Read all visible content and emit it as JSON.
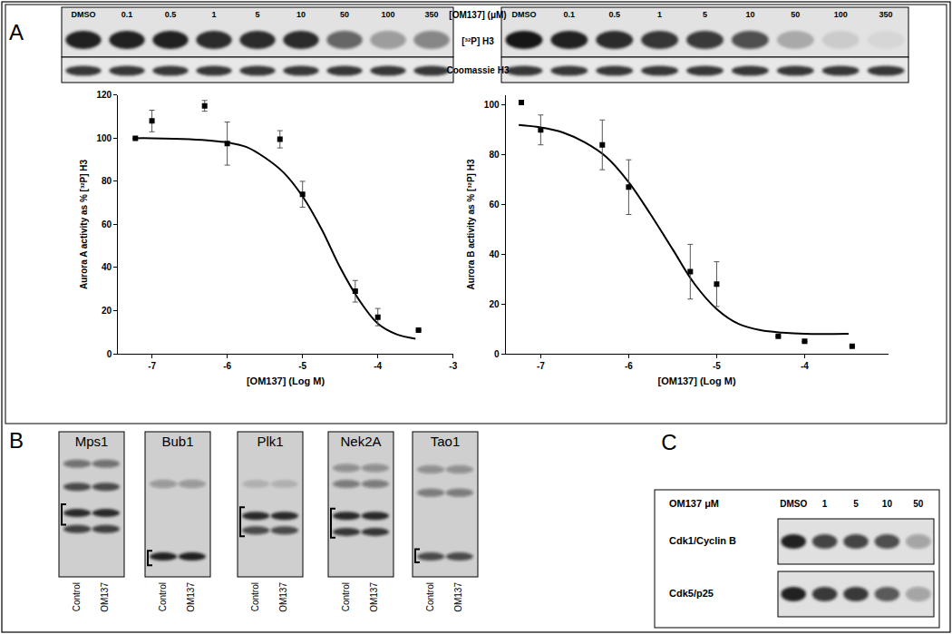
{
  "panel_labels": [
    "A",
    "B",
    "C"
  ],
  "chart_data": [
    {
      "type": "scatter",
      "y_label": "Aurora A activity as % [³²P] H3",
      "x_label": "[OM137] (Log M)",
      "x": [
        -7.22,
        -7,
        -6.3,
        -6,
        -5.3,
        -5,
        -4.3,
        -4,
        -3.46
      ],
      "values": [
        100,
        108,
        115,
        97.5,
        99.5,
        74,
        29,
        17,
        11
      ],
      "errors": [
        0,
        5,
        2.5,
        10,
        4,
        6,
        5,
        4,
        0
      ],
      "fit": {
        "x": [
          -7.25,
          -7,
          -6.5,
          -6,
          -5.75,
          -5.5,
          -5.25,
          -5,
          -4.75,
          -4.5,
          -4.25,
          -4,
          -3.75,
          -3.5
        ],
        "values": [
          100,
          100,
          99.5,
          98,
          96,
          91,
          84,
          73,
          58,
          40,
          25,
          14,
          9,
          7
        ]
      },
      "xlim": [
        -7.45,
        -3
      ],
      "xticks": [
        -7,
        -6,
        -5,
        -4,
        -3
      ],
      "ylim": [
        0,
        120
      ],
      "yticks": [
        0,
        20,
        40,
        60,
        80,
        100,
        120
      ],
      "color": "#000000",
      "marker": "square",
      "line_style": "solid",
      "grid": false
    },
    {
      "type": "scatter",
      "y_label": "Aurora B activity as % [³²P] H3",
      "x_label": "[OM137] (Log M)",
      "x": [
        -7.22,
        -7,
        -6.3,
        -6,
        -5.3,
        -5,
        -4.3,
        -4,
        -3.46
      ],
      "values": [
        101,
        90,
        84,
        67,
        33,
        28,
        7,
        5,
        3
      ],
      "errors": [
        0,
        6,
        10,
        11,
        11,
        9,
        0,
        0,
        0
      ],
      "fit": {
        "x": [
          -7.25,
          -7,
          -6.75,
          -6.5,
          -6.25,
          -6,
          -5.75,
          -5.5,
          -5.25,
          -5,
          -4.75,
          -4.5,
          -4.25,
          -4,
          -3.5
        ],
        "values": [
          92,
          91,
          89,
          85,
          79,
          69,
          56,
          42,
          28,
          18,
          12,
          9.5,
          8.5,
          8,
          8
        ]
      },
      "xlim": [
        -7.4,
        -3.05
      ],
      "xticks": [
        -7,
        -6,
        -5,
        -4
      ],
      "ylim": [
        0,
        104
      ],
      "yticks": [
        0,
        20,
        40,
        60,
        80,
        100
      ],
      "color": "#000000",
      "marker": "square",
      "line_style": "solid",
      "grid": false
    }
  ],
  "panel_a_gels": {
    "unit_label": "[OM137] (μM)",
    "lanes": [
      "DMSO",
      "0.1",
      "0.5",
      "1",
      "5",
      "10",
      "50",
      "100",
      "350"
    ],
    "row_labels": [
      "[³²P] H3",
      "Coomassie H3"
    ],
    "gels": [
      {
        "rows": [
          [
            0.95,
            0.95,
            0.95,
            0.9,
            0.9,
            0.9,
            0.6,
            0.35,
            0.45
          ],
          [
            0.85,
            0.85,
            0.85,
            0.85,
            0.85,
            0.85,
            0.85,
            0.85,
            0.85
          ]
        ]
      },
      {
        "rows": [
          [
            1,
            0.95,
            0.9,
            0.85,
            0.8,
            0.7,
            0.25,
            0.1,
            0.05
          ],
          [
            0.85,
            0.85,
            0.85,
            0.85,
            0.85,
            0.85,
            0.85,
            0.85,
            0.85
          ]
        ]
      }
    ]
  },
  "panel_b": {
    "lane_labels": [
      "Control",
      "OM137"
    ],
    "gels": [
      {
        "name": "Mps1",
        "bands": [
          [
            0.5,
            0.5
          ],
          [
            0.7,
            0.7
          ],
          [
            0.9,
            0.9
          ],
          [
            0.75,
            0.75
          ]
        ]
      },
      {
        "name": "Bub1",
        "bands": [
          [
            0.3,
            0.3
          ],
          [
            0.95,
            0.95
          ]
        ]
      },
      {
        "name": "Plk1",
        "bands": [
          [
            0.15,
            0.15
          ],
          [
            0.9,
            0.9
          ],
          [
            0.7,
            0.7
          ]
        ]
      },
      {
        "name": "Nek2A",
        "bands": [
          [
            0.35,
            0.35
          ],
          [
            0.45,
            0.45
          ],
          [
            0.9,
            0.9
          ],
          [
            0.8,
            0.8
          ]
        ]
      },
      {
        "name": "Tao1",
        "bands": [
          [
            0.35,
            0.35
          ],
          [
            0.45,
            0.45
          ],
          [
            0.7,
            0.7
          ]
        ]
      }
    ]
  },
  "panel_c": {
    "header": "OM137 μM",
    "lanes": [
      "DMSO",
      "1",
      "5",
      "10",
      "50"
    ],
    "rows": [
      {
        "label": "Cdk1/Cyclin B",
        "intensities": [
          0.95,
          0.75,
          0.75,
          0.7,
          0.3
        ]
      },
      {
        "label": "Cdk5/p25",
        "intensities": [
          0.95,
          0.8,
          0.8,
          0.65,
          0.3
        ]
      }
    ]
  }
}
